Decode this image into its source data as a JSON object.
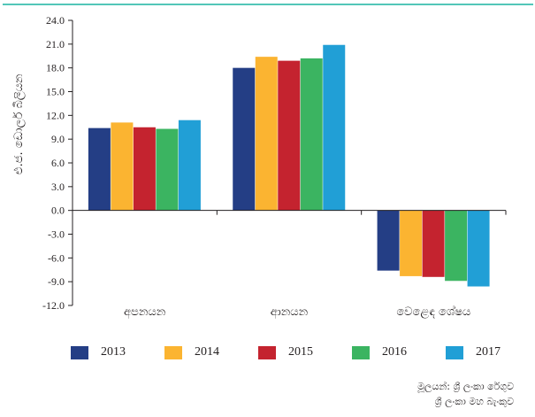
{
  "chart_data": {
    "type": "bar",
    "ylabel": "එ.ජ. ඩොලර් බිලියන",
    "ylim": [
      -12.0,
      24.0
    ],
    "yticks": [
      "24.0",
      "21.0",
      "18.0",
      "15.0",
      "12.0",
      "9.0",
      "6.0",
      "3.0",
      "0.0",
      "-3.0",
      "-6.0",
      "-9.0",
      "-12.0"
    ],
    "categories": [
      "අපනයන",
      "ආනයන",
      "වෙළෙඳ ශේෂය"
    ],
    "series": [
      {
        "name": "2013",
        "color": "#243e85",
        "values": [
          10.4,
          18.0,
          -7.6
        ]
      },
      {
        "name": "2014",
        "color": "#fbb431",
        "values": [
          11.1,
          19.4,
          -8.3
        ]
      },
      {
        "name": "2015",
        "color": "#c4232f",
        "values": [
          10.5,
          18.9,
          -8.4
        ]
      },
      {
        "name": "2016",
        "color": "#3bb461",
        "values": [
          10.3,
          19.2,
          -8.9
        ]
      },
      {
        "name": "2017",
        "color": "#219fd6",
        "values": [
          11.4,
          20.9,
          -9.6
        ]
      }
    ],
    "grid": false,
    "legend_position": "bottom"
  },
  "source": {
    "line1": "මූලයන්: ශ්‍රී ලංකා රේගුව",
    "line2": "ශ්‍රී ලංකා මහ බැංකුව"
  }
}
